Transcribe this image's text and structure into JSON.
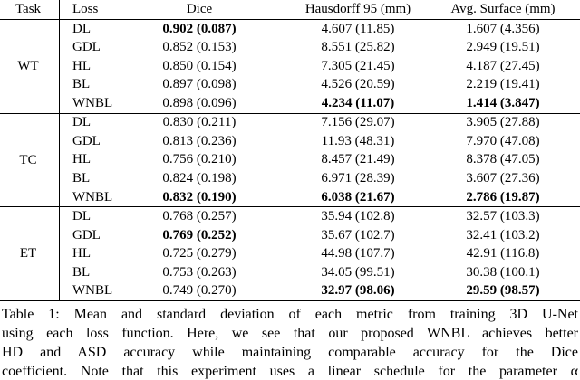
{
  "table": {
    "header": [
      "Task",
      "Loss",
      "Dice",
      "Hausdorff 95 (mm)",
      "Avg. Surface (mm)"
    ],
    "groups": [
      {
        "task": "WT",
        "rows": [
          {
            "loss": "DL",
            "cells": [
              "0.902 (0.087)",
              "4.607 (11.85)",
              "1.607 (4.356)"
            ],
            "bold": [
              0
            ]
          },
          {
            "loss": "GDL",
            "cells": [
              "0.852 (0.153)",
              "8.551 (25.82)",
              "2.949 (19.51)"
            ],
            "bold": []
          },
          {
            "loss": "HL",
            "cells": [
              "0.850 (0.154)",
              "7.305 (21.45)",
              "4.187 (27.45)"
            ],
            "bold": []
          },
          {
            "loss": "BL",
            "cells": [
              "0.897 (0.098)",
              "4.526 (20.59)",
              "2.219 (19.41)"
            ],
            "bold": []
          },
          {
            "loss": "WNBL",
            "cells": [
              "0.898 (0.096)",
              "4.234 (11.07)",
              "1.414 (3.847)"
            ],
            "bold": [
              1,
              2
            ]
          }
        ]
      },
      {
        "task": "TC",
        "rows": [
          {
            "loss": "DL",
            "cells": [
              "0.830 (0.211)",
              "7.156 (29.07)",
              "3.905 (27.88)"
            ],
            "bold": []
          },
          {
            "loss": "GDL",
            "cells": [
              "0.813 (0.236)",
              "11.93 (48.31)",
              "7.970 (47.08)"
            ],
            "bold": []
          },
          {
            "loss": "HL",
            "cells": [
              "0.756 (0.210)",
              "8.457 (21.49)",
              "8.378 (47.05)"
            ],
            "bold": []
          },
          {
            "loss": "BL",
            "cells": [
              "0.824 (0.198)",
              "6.971 (28.39)",
              "3.607 (27.36)"
            ],
            "bold": []
          },
          {
            "loss": "WNBL",
            "cells": [
              "0.832 (0.190)",
              "6.038 (21.67)",
              "2.786 (19.87)"
            ],
            "bold": [
              0,
              1,
              2
            ]
          }
        ]
      },
      {
        "task": "ET",
        "rows": [
          {
            "loss": "DL",
            "cells": [
              "0.768 (0.257)",
              "35.94 (102.8)",
              "32.57 (103.3)"
            ],
            "bold": []
          },
          {
            "loss": "GDL",
            "cells": [
              "0.769 (0.252)",
              "35.67 (102.7)",
              "32.41 (103.2)"
            ],
            "bold": [
              0
            ]
          },
          {
            "loss": "HL",
            "cells": [
              "0.725 (0.279)",
              "44.98 (107.7)",
              "42.91 (116.8)"
            ],
            "bold": []
          },
          {
            "loss": "BL",
            "cells": [
              "0.753 (0.263)",
              "34.05 (99.51)",
              "30.38 (100.1)"
            ],
            "bold": []
          },
          {
            "loss": "WNBL",
            "cells": [
              "0.749 (0.270)",
              "32.97 (98.06)",
              "29.59 (98.57)"
            ],
            "bold": [
              1,
              2
            ]
          }
        ]
      }
    ]
  },
  "caption": [
    "Table 1: Mean and standard deviation of each metric from training 3D U-Net",
    "using each loss function. Here, we see that our proposed WNBL achieves better",
    "HD and ASD accuracy while maintaining comparable accuracy for the Dice",
    "coefficient. Note that this experiment uses a linear schedule for the parameter α"
  ]
}
